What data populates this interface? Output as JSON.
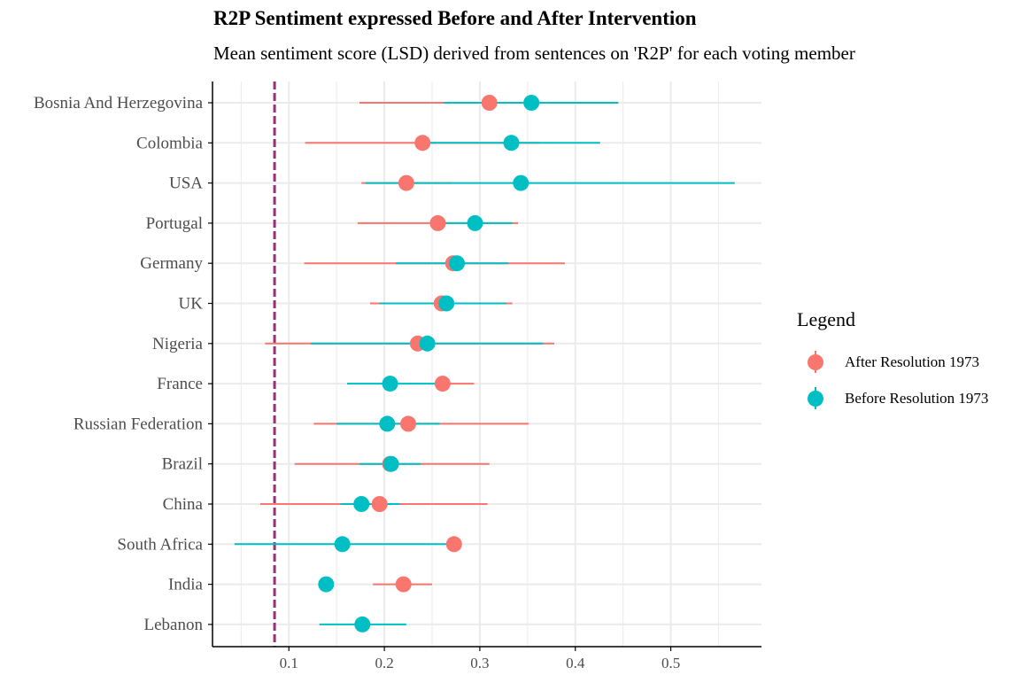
{
  "colors": {
    "after": "#F8766D",
    "before": "#00BFC4",
    "reference_line": "#9B2E7B",
    "grid": "#EBEBEB",
    "axis": "#000000"
  },
  "chart_data": {
    "type": "dot-errorbar",
    "title": "R2P Sentiment expressed Before and After Intervention",
    "subtitle": "Mean sentiment score (LSD) derived from sentences on 'R2P' for each voting member",
    "xlabel": "",
    "ylabel": "",
    "xlim": [
      0.02,
      0.595
    ],
    "x_ticks": [
      0.1,
      0.2,
      0.3,
      0.4,
      0.5
    ],
    "x_tick_labels": [
      "0.1",
      "0.2",
      "0.3",
      "0.4",
      "0.5"
    ],
    "reference_line_x": 0.085,
    "grid": true,
    "legend": {
      "title": "Legend",
      "position": "right",
      "entries": [
        "After Resolution 1973",
        "Before Resolution 1973"
      ]
    },
    "categories": [
      "Bosnia And Herzegovina",
      "Colombia",
      "USA",
      "Portugal",
      "Germany",
      "UK",
      "Nigeria",
      "France",
      "Russian Federation",
      "Brazil",
      "China",
      "South Africa",
      "India",
      "Lebanon"
    ],
    "series": [
      {
        "name": "After Resolution 1973",
        "color": "#F8766D",
        "means": [
          0.31,
          0.24,
          0.223,
          0.256,
          0.272,
          0.26,
          0.235,
          0.261,
          0.225,
          0.206,
          0.195,
          0.273,
          0.22,
          null
        ],
        "lower": [
          0.174,
          0.117,
          0.176,
          0.172,
          0.116,
          0.185,
          0.075,
          0.262,
          0.126,
          0.106,
          0.07,
          0.27,
          0.188,
          null
        ],
        "upper": [
          0.445,
          0.362,
          0.27,
          0.34,
          0.389,
          0.334,
          0.378,
          0.294,
          0.351,
          0.31,
          0.308,
          0.276,
          0.25,
          null
        ]
      },
      {
        "name": "Before Resolution 1973",
        "color": "#00BFC4",
        "means": [
          0.354,
          0.333,
          0.343,
          0.295,
          0.276,
          0.265,
          0.245,
          0.206,
          0.203,
          0.207,
          0.176,
          0.156,
          0.139,
          0.177
        ],
        "lower": [
          0.262,
          0.245,
          0.18,
          0.255,
          0.212,
          0.195,
          0.123,
          0.161,
          0.15,
          0.174,
          0.154,
          0.043,
          0.139,
          0.132
        ],
        "upper": [
          0.445,
          0.426,
          0.567,
          0.334,
          0.33,
          0.328,
          0.366,
          0.26,
          0.258,
          0.238,
          0.216,
          0.27,
          0.139,
          0.223
        ]
      }
    ]
  }
}
